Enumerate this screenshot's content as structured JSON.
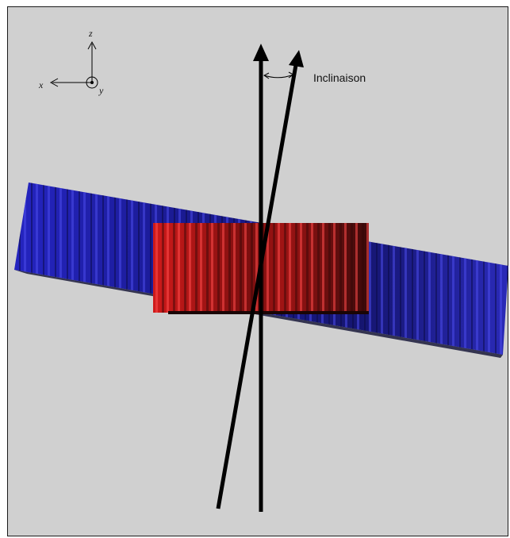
{
  "axes": {
    "z_label": "z",
    "x_label": "x",
    "y_label": "y"
  },
  "annotation": {
    "label": "Inclinaison"
  },
  "colors": {
    "background": "#d0d0d0",
    "blue_band": "#1f1fa8",
    "red_block": "#b01818",
    "arrows": "#000000"
  }
}
